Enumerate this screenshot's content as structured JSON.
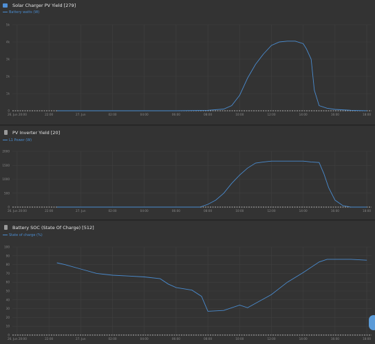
{
  "panels": [
    {
      "title": "Solar Charger PV Yield [279]",
      "legend": "Battery watts (W)",
      "icon_color": "#4f8fd6",
      "line_color": "#4a8cd0",
      "chart_data": {
        "type": "line",
        "title": "Solar Charger PV Yield [279]",
        "y_ticks": [
          "5k",
          "4k",
          "3k",
          "2k",
          "1k",
          "0"
        ],
        "ylim": [
          0,
          5000
        ],
        "x_ticks": [
          "26. Jun 20:00",
          "22:00",
          "27. Jun",
          "02:00",
          "04:00",
          "06:00",
          "08:00",
          "10:00",
          "12:00",
          "14:00",
          "16:00",
          "18:00"
        ],
        "grid": true,
        "series": [
          {
            "name": "Battery watts (W)",
            "x": [
              -1.5,
              0,
              2,
              4,
              6,
              8,
              9,
              9.5,
              10,
              10.5,
              11,
              11.5,
              12,
              12.5,
              13,
              13.5,
              14,
              14.2,
              14.5,
              14.7,
              15,
              15.5,
              16,
              17,
              18
            ],
            "y": [
              0,
              0,
              0,
              0,
              0,
              30,
              100,
              300,
              900,
              1900,
              2700,
              3300,
              3800,
              4000,
              4050,
              4050,
              3900,
              3600,
              3000,
              1200,
              300,
              150,
              80,
              30,
              0
            ]
          }
        ]
      }
    },
    {
      "title": "PV Inverter Yield [20]",
      "legend": "L1 Power (W)",
      "icon_color": "#9a9a9a",
      "line_color": "#4a8cd0",
      "chart_data": {
        "type": "line",
        "title": "PV Inverter Yield [20]",
        "y_ticks": [
          "2000",
          "1500",
          "1000",
          "500",
          "0"
        ],
        "ylim": [
          0,
          2000
        ],
        "x_ticks": [
          "26. Jun 20:00",
          "22:00",
          "27. Jun",
          "02:00",
          "04:00",
          "06:00",
          "08:00",
          "10:00",
          "12:00",
          "14:00",
          "16:00",
          "18:00"
        ],
        "grid": true,
        "series": [
          {
            "name": "L1 Power (W)",
            "x": [
              -1.5,
              0,
              2,
              4,
              6,
              7.5,
              8,
              8.5,
              9,
              9.5,
              10,
              10.5,
              11,
              11.5,
              12,
              13,
              14,
              14.5,
              15,
              15.3,
              15.6,
              16,
              16.5,
              17,
              18
            ],
            "y": [
              0,
              0,
              0,
              0,
              0,
              0,
              100,
              250,
              500,
              850,
              1150,
              1400,
              1580,
              1620,
              1650,
              1650,
              1650,
              1620,
              1600,
              1200,
              700,
              250,
              50,
              0,
              0
            ]
          }
        ]
      }
    },
    {
      "title": "Battery SOC (State Of Charge) [512]",
      "legend": "State of charge (%)",
      "icon_color": "#9a9a9a",
      "line_color": "#4a8cd0",
      "chart_data": {
        "type": "line",
        "title": "Battery SOC (State Of Charge) [512]",
        "y_ticks": [
          "100",
          "90",
          "80",
          "70",
          "60",
          "50",
          "40",
          "30",
          "20",
          "10",
          "0"
        ],
        "ylim": [
          0,
          100
        ],
        "x_ticks": [
          "26. Jun 20:00",
          "22:00",
          "27. Jun",
          "02:00",
          "04:00",
          "06:00",
          "08:00",
          "10:00",
          "12:00",
          "14:00",
          "16:00",
          "18:00"
        ],
        "grid": true,
        "series": [
          {
            "name": "State of charge (%)",
            "x": [
              -1.5,
              -1,
              0,
              1,
              2,
              3,
              4,
              5,
              5.5,
              6,
              7,
              7.6,
              8,
              9,
              10,
              10.5,
              11,
              12,
              13,
              14,
              15,
              15.5,
              16,
              17,
              18
            ],
            "y": [
              82,
              80,
              75,
              70,
              68,
              67,
              66,
              64,
              58,
              54,
              51,
              44,
              27,
              28,
              34,
              31,
              36,
              46,
              60,
              71,
              83,
              86,
              86,
              86,
              85
            ]
          }
        ]
      }
    }
  ]
}
